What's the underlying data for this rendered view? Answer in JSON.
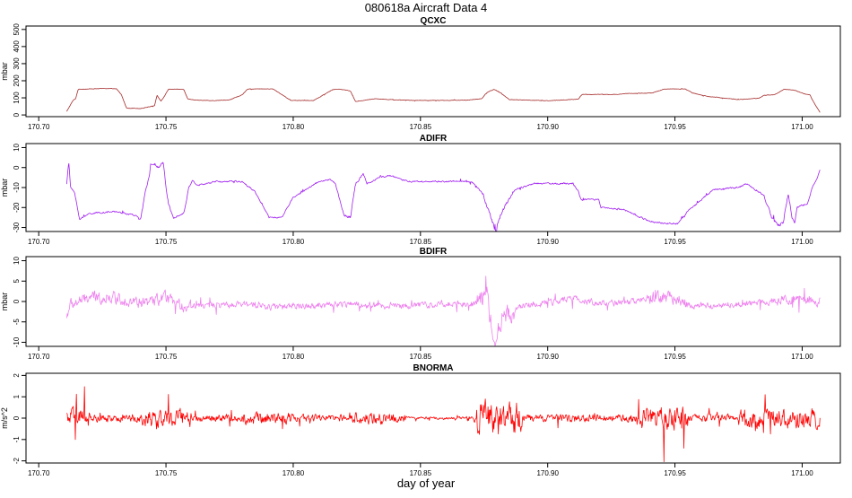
{
  "figure": {
    "title": "080618a   Aircraft Data 4",
    "xlabel": "day of year"
  },
  "chart_data": [
    {
      "type": "line",
      "title": "QCXC",
      "ylabel": "mbar",
      "color": "#a52a2a",
      "xlim": [
        170.695,
        171.015
      ],
      "ylim": [
        -10,
        520
      ],
      "xticks": [
        170.7,
        170.75,
        170.8,
        170.85,
        170.9,
        170.95,
        171.0
      ],
      "xtick_labels": [
        "170.70",
        "170.75",
        "170.80",
        "170.85",
        "170.90",
        "170.95",
        "171.00"
      ],
      "yticks": [
        0,
        100,
        200,
        300,
        400,
        500
      ],
      "ytick_labels": [
        "0",
        "100",
        "200",
        "300",
        "400",
        "500"
      ],
      "noise": 2,
      "x": [
        170.711,
        170.7125,
        170.7135,
        170.7145,
        170.7155,
        170.726,
        170.7305,
        170.7325,
        170.7345,
        170.74,
        170.741,
        170.7455,
        170.7465,
        170.748,
        170.7495,
        170.751,
        170.757,
        170.7585,
        170.761,
        170.768,
        170.775,
        170.78,
        170.782,
        170.784,
        170.792,
        170.796,
        170.799,
        170.808,
        170.812,
        170.8155,
        170.818,
        170.8225,
        170.8245,
        170.832,
        170.84,
        170.849,
        170.86,
        170.868,
        170.874,
        170.8765,
        170.879,
        170.8815,
        170.885,
        170.9,
        170.912,
        170.9135,
        170.928,
        170.9305,
        170.941,
        170.946,
        170.954,
        170.957,
        170.963,
        170.975,
        170.983,
        170.985,
        170.989,
        170.993,
        170.997,
        171.001,
        171.003,
        171.0045,
        171.0065,
        171.007
      ],
      "y": [
        20,
        60,
        85,
        95,
        150,
        155,
        153,
        118,
        40,
        38,
        40,
        55,
        115,
        80,
        112,
        150,
        150,
        95,
        88,
        83,
        88,
        118,
        150,
        152,
        152,
        115,
        85,
        85,
        118,
        148,
        152,
        140,
        78,
        95,
        88,
        85,
        85,
        86,
        95,
        135,
        150,
        128,
        90,
        83,
        92,
        120,
        120,
        125,
        128,
        152,
        152,
        128,
        108,
        90,
        98,
        115,
        118,
        150,
        145,
        122,
        118,
        75,
        28,
        15
      ]
    },
    {
      "type": "line",
      "title": "ADIFR",
      "ylabel": "mbar",
      "color": "#a020f0",
      "xlim": [
        170.695,
        171.015
      ],
      "ylim": [
        -32,
        12
      ],
      "xticks": [
        170.7,
        170.75,
        170.8,
        170.85,
        170.9,
        170.95,
        171.0
      ],
      "xtick_labels": [
        "170.70",
        "170.75",
        "170.80",
        "170.85",
        "170.90",
        "170.95",
        "171.00"
      ],
      "yticks": [
        -30,
        -20,
        -10,
        0,
        10
      ],
      "ytick_labels": [
        "-30",
        "-20",
        "-10",
        "0",
        "10"
      ],
      "noise": 0.6,
      "x": [
        170.711,
        170.7118,
        170.7125,
        170.714,
        170.7155,
        170.716,
        170.72,
        170.73,
        170.738,
        170.74,
        170.742,
        170.7435,
        170.744,
        170.7455,
        170.747,
        170.749,
        170.75,
        170.751,
        170.753,
        170.757,
        170.759,
        170.7605,
        170.762,
        170.77,
        170.78,
        170.785,
        170.7905,
        170.7955,
        170.8,
        170.81,
        170.8145,
        170.8165,
        170.82,
        170.8225,
        170.8245,
        170.8275,
        170.829,
        170.834,
        170.838,
        170.845,
        170.855,
        170.87,
        170.8745,
        170.877,
        170.8795,
        170.882,
        170.887,
        170.895,
        170.905,
        170.91,
        170.912,
        170.913,
        170.92,
        170.921,
        170.93,
        170.94,
        170.947,
        170.951,
        170.955,
        170.965,
        170.975,
        170.978,
        170.985,
        170.988,
        170.9905,
        170.9925,
        170.9945,
        170.996,
        170.997,
        170.998,
        171.002,
        171.004,
        171.006,
        171.007
      ],
      "y": [
        -8,
        3,
        -10,
        -12,
        -22,
        -26,
        -23,
        -22,
        -24,
        -26,
        -12,
        -4,
        2,
        2,
        0,
        2,
        -10,
        -18,
        -25,
        -23,
        -10,
        -6,
        -9,
        -7,
        -7,
        -12,
        -25,
        -25,
        -15,
        -7,
        -6,
        -8,
        -24,
        -25,
        -8,
        -3,
        -8,
        -5,
        -4,
        -7,
        -7,
        -7,
        -13,
        -22,
        -32,
        -22,
        -11,
        -8,
        -8,
        -8,
        -12,
        -16,
        -16,
        -20,
        -21,
        -27,
        -28,
        -28,
        -22,
        -11,
        -10,
        -8,
        -14,
        -25,
        -29,
        -28,
        -13,
        -25,
        -28,
        -20,
        -18,
        -10,
        -5,
        -1
      ]
    },
    {
      "type": "line",
      "title": "BDIFR",
      "ylabel": "mbar",
      "color": "#ee82ee",
      "xlim": [
        170.695,
        171.015
      ],
      "ylim": [
        -11,
        11
      ],
      "xticks": [
        170.7,
        170.75,
        170.8,
        170.85,
        170.9,
        170.95,
        171.0
      ],
      "xtick_labels": [
        "170.70",
        "170.75",
        "170.80",
        "170.85",
        "170.90",
        "170.95",
        "171.00"
      ],
      "yticks": [
        -10,
        -5,
        0,
        5,
        10
      ],
      "ytick_labels": [
        "-10",
        "-5",
        "0",
        "5",
        "10"
      ],
      "noise": 1.2,
      "x": [
        170.711,
        170.712,
        170.72,
        170.73,
        170.74,
        170.745,
        170.75,
        170.755,
        170.76,
        170.775,
        170.785,
        170.79,
        170.8,
        170.81,
        170.82,
        170.83,
        170.845,
        170.86,
        170.87,
        170.874,
        170.876,
        170.8775,
        170.879,
        170.8805,
        170.882,
        170.885,
        170.89,
        170.9,
        170.91,
        170.915,
        170.925,
        170.935,
        170.94,
        170.95,
        170.955,
        170.96,
        170.98,
        170.995,
        171.005,
        171.007
      ],
      "y": [
        -4,
        -1,
        1,
        1,
        -0.5,
        0,
        1,
        -1,
        -1,
        -1,
        -0.5,
        -1.5,
        -1,
        -1,
        -0.5,
        -1,
        -1,
        -0.5,
        -0.5,
        0,
        3,
        -4,
        -10,
        -7,
        -4,
        -3,
        -1,
        -0.5,
        1,
        0,
        -0.5,
        0,
        1,
        1,
        -1,
        -1,
        -0.5,
        0.5,
        0,
        0.5
      ]
    },
    {
      "type": "line",
      "title": "BNORMA",
      "ylabel": "m/s^2",
      "color": "#ff0000",
      "xlim": [
        170.695,
        171.015
      ],
      "ylim": [
        -2.1,
        2.1
      ],
      "xticks": [
        170.7,
        170.75,
        170.8,
        170.85,
        170.9,
        170.95,
        171.0
      ],
      "xtick_labels": [
        "170.70",
        "170.75",
        "170.80",
        "170.85",
        "170.90",
        "170.95",
        "171.00"
      ],
      "yticks": [
        -2,
        -1,
        0,
        1,
        2
      ],
      "ytick_labels": [
        "-2",
        "-1",
        "0",
        "1",
        "2"
      ],
      "noise": 0.25,
      "x": [
        170.711,
        171.007
      ],
      "y": [
        0,
        0
      ]
    }
  ]
}
